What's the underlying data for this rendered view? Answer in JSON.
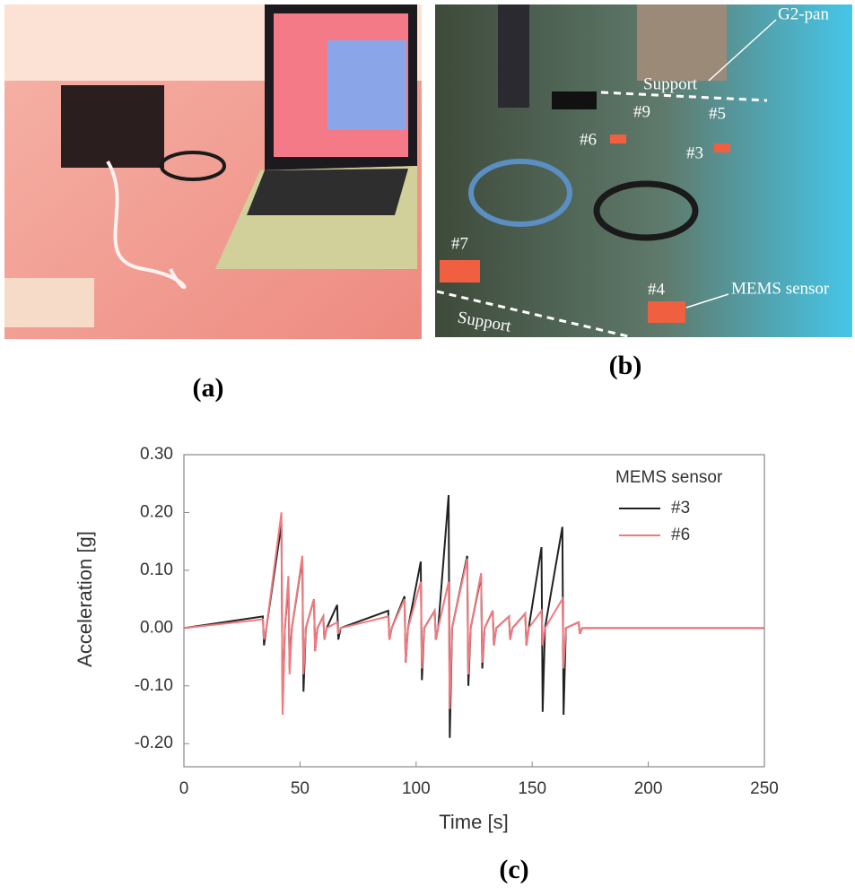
{
  "panel_a": {
    "caption": "(a)"
  },
  "panel_b": {
    "caption": "(b)",
    "labels": [
      "G2-pan",
      "Support",
      "#9",
      "#5",
      "#6",
      "#3",
      "#7",
      "#4",
      "MEMS sensor",
      "Support"
    ]
  },
  "chart_data": {
    "type": "line",
    "caption": "(c)",
    "x_label": "Time  [s]",
    "y_label": "Acceleration [g]",
    "legend_title": "MEMS sensor",
    "xlim": [
      0,
      250
    ],
    "xticks": [
      0,
      50,
      100,
      150,
      200,
      250
    ],
    "ylim": [
      -0.24,
      0.3
    ],
    "yticks": [
      {
        "value": -0.2,
        "label": "-0.20"
      },
      {
        "value": -0.1,
        "label": "-0.10"
      },
      {
        "value": 0,
        "label": "0.00"
      },
      {
        "value": 0.1,
        "label": "0.10"
      },
      {
        "value": 0.2,
        "label": "0.20"
      },
      {
        "value": 0.3,
        "label": "0.30"
      }
    ],
    "x": [
      0,
      34,
      34.5,
      35.5,
      42,
      42.5,
      43.5,
      45,
      45.5,
      46.5,
      51,
      51.5,
      52.5,
      56,
      56.5,
      57.5,
      60,
      60.5,
      61.5,
      66,
      66.5,
      67.5,
      88,
      88.5,
      89.5,
      95,
      95.5,
      96.5,
      102,
      102.5,
      103.5,
      108,
      108.5,
      109.5,
      114,
      114.5,
      115.5,
      122,
      122.5,
      123.5,
      128,
      128.5,
      129.5,
      133,
      133.5,
      134.5,
      140,
      140.5,
      141.5,
      147,
      147.5,
      148.5,
      154,
      154.5,
      155.5,
      163,
      163.5,
      164.5,
      170,
      170.5,
      171.5,
      250
    ],
    "series": [
      {
        "name": "#3",
        "color": "#222222",
        "values": [
          0,
          0.02,
          -0.03,
          0,
          0.18,
          -0.14,
          0,
          0.08,
          -0.07,
          0,
          0.12,
          -0.11,
          0,
          0.05,
          -0.04,
          0,
          0.02,
          -0.02,
          0,
          0.04,
          -0.02,
          0,
          0.03,
          -0.02,
          0,
          0.055,
          -0.06,
          0,
          0.115,
          -0.09,
          0,
          0.03,
          -0.02,
          0,
          0.23,
          -0.19,
          0,
          0.125,
          -0.1,
          0,
          0.09,
          -0.07,
          0,
          0.03,
          -0.03,
          0,
          0.02,
          -0.02,
          0,
          0.025,
          -0.03,
          0,
          0.14,
          -0.145,
          0,
          0.175,
          -0.15,
          0,
          0.01,
          -0.01,
          0,
          0
        ]
      },
      {
        "name": "#6",
        "color": "#f07a80",
        "values": [
          0,
          0.015,
          -0.02,
          0,
          0.2,
          -0.15,
          0,
          0.09,
          -0.08,
          0,
          0.125,
          -0.08,
          0,
          0.05,
          -0.04,
          0,
          0.02,
          -0.02,
          0,
          0.01,
          -0.01,
          0,
          0.02,
          -0.02,
          0,
          0.05,
          -0.06,
          0,
          0.08,
          -0.07,
          0,
          0.03,
          -0.02,
          0,
          0.08,
          -0.14,
          0,
          0.12,
          -0.08,
          0,
          0.095,
          -0.06,
          0,
          0.03,
          -0.03,
          0,
          0.02,
          -0.02,
          0,
          0.025,
          -0.03,
          0,
          0.03,
          -0.03,
          0,
          0.05,
          -0.07,
          0,
          0.01,
          -0.01,
          0,
          0
        ]
      }
    ]
  }
}
